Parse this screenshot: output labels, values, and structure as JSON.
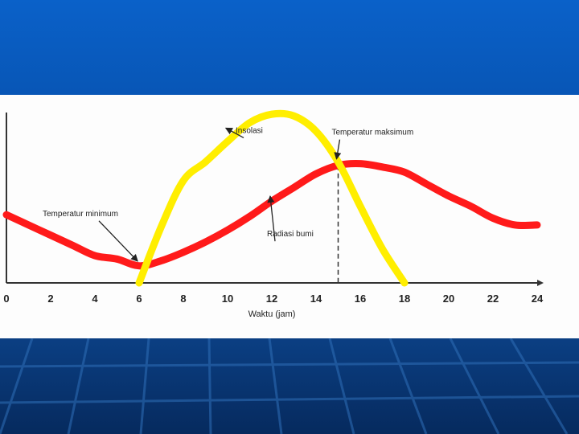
{
  "chart_data": {
    "type": "line",
    "xlabel": "Waktu (jam)",
    "ylabel": "",
    "xlim": [
      0,
      24
    ],
    "ylim": [
      0,
      10
    ],
    "x_ticks": [
      "0",
      "2",
      "4",
      "6",
      "8",
      "10",
      "12",
      "14",
      "16",
      "18",
      "20",
      "22",
      "24"
    ],
    "series": [
      {
        "name": "Radiasi bumi",
        "color": "#ff1a1a",
        "x": [
          0,
          1,
          2,
          3,
          4,
          5,
          6,
          7,
          8,
          9,
          10,
          11,
          12,
          13,
          14,
          15,
          16,
          17,
          18,
          19,
          20,
          21,
          22,
          23,
          24
        ],
        "y": [
          4.0,
          3.4,
          2.8,
          2.2,
          1.6,
          1.4,
          1.0,
          1.3,
          1.8,
          2.4,
          3.1,
          3.9,
          4.8,
          5.6,
          6.4,
          6.9,
          7.0,
          6.8,
          6.5,
          5.8,
          5.1,
          4.5,
          3.8,
          3.4,
          3.4
        ]
      },
      {
        "name": "Insolasi",
        "color": "#ffee00",
        "x": [
          6,
          7,
          8,
          9,
          10,
          11,
          12,
          13,
          14,
          15,
          16,
          17,
          18
        ],
        "y": [
          0,
          3.3,
          6.0,
          7.1,
          8.3,
          9.4,
          9.9,
          9.8,
          8.9,
          7.1,
          4.5,
          2.0,
          0
        ]
      }
    ],
    "annotations": [
      {
        "text": "Temperatur minimum",
        "x": 6,
        "y": 1.0
      },
      {
        "text": "Temperatur maksimum",
        "x": 15,
        "y": 7.0
      },
      {
        "text": "Insolasi",
        "x": 10,
        "y": 8.8
      },
      {
        "text": "Radiasi bumi",
        "x": 12,
        "y": 4.8
      }
    ],
    "reference_lines": [
      {
        "orientation": "vertical",
        "x": 15,
        "style": "dashed"
      }
    ]
  }
}
